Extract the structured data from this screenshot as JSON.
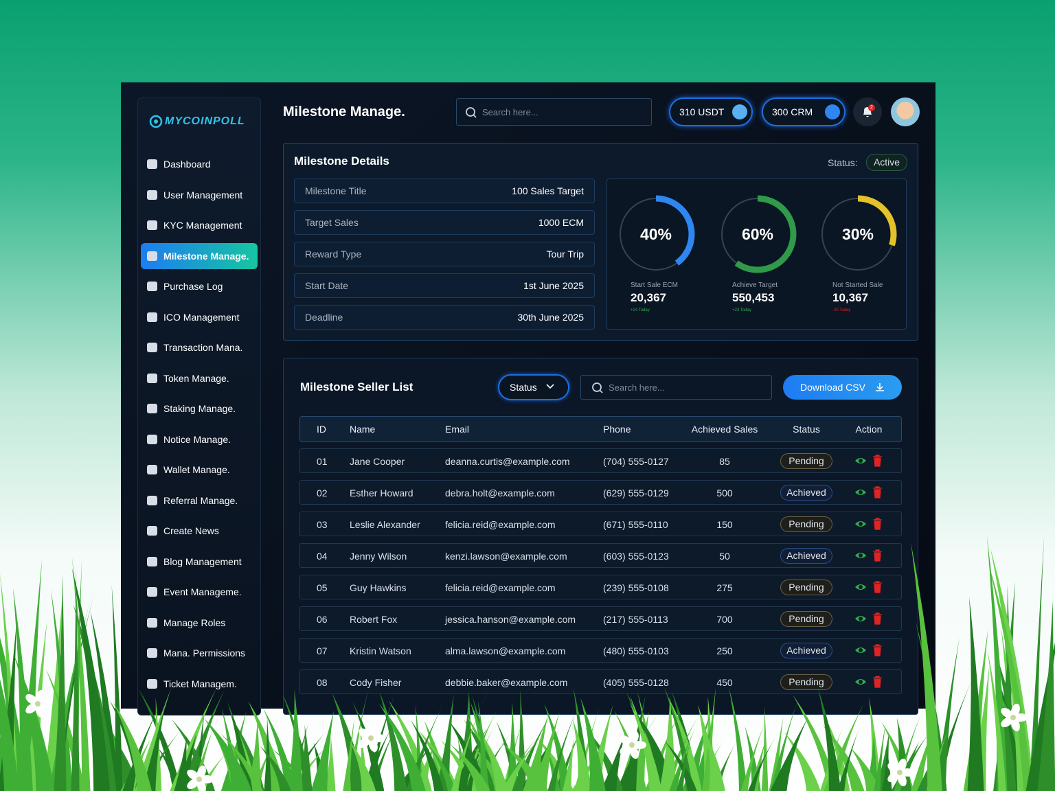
{
  "brand": "MYCOINPOLL",
  "sidebar": {
    "active_index": 3,
    "items": [
      "Dashboard",
      "User Management",
      "KYC Management",
      "Milestone Manage.",
      "Purchase Log",
      "ICO Management",
      "Transaction Mana.",
      "Token Manage.",
      "Staking Manage.",
      "Notice Manage.",
      "Wallet Manage.",
      "Referral Manage.",
      "Create News",
      "Blog Management",
      "Event Manageme.",
      "Manage Roles",
      "Mana. Permissions",
      "Ticket Managem."
    ]
  },
  "header": {
    "title": "Milestone Manage.",
    "search_placeholder": "Search here...",
    "balances": [
      "310 USDT",
      "300 CRM"
    ],
    "notification_count": "2"
  },
  "details": {
    "title": "Milestone Details",
    "status_label": "Status:",
    "status": "Active",
    "fields": [
      {
        "label": "Milestone Title",
        "value": "100 Sales Target"
      },
      {
        "label": "Target Sales",
        "value": "1000 ECM"
      },
      {
        "label": "Reward Type",
        "value": "Tour Trip"
      },
      {
        "label": "Start Date",
        "value": "1st June 2025"
      },
      {
        "label": "Deadline",
        "value": "30th June 2025"
      }
    ],
    "stats": [
      {
        "value": 40,
        "label": "40%",
        "color": "#2f86f0",
        "caption": "Start Sale ECM",
        "amount": "20,367",
        "change": "+24 Today",
        "trend": "up"
      },
      {
        "value": 60,
        "label": "60%",
        "color": "#2f9a48",
        "caption": "Achieve Target",
        "amount": "550,453",
        "change": "+23 Today",
        "trend": "up"
      },
      {
        "value": 30,
        "label": "30%",
        "color": "#e3c22a",
        "caption": "Not Started Sale",
        "amount": "10,367",
        "change": "-20 Today",
        "trend": "down"
      }
    ]
  },
  "seller_list": {
    "title": "Milestone Seller List",
    "status_filter": "Status",
    "search_placeholder": "Search here...",
    "download": "Download CSV",
    "columns": [
      "ID",
      "Name",
      "Email",
      "Phone",
      "Achieved Sales",
      "Status",
      "Action"
    ],
    "rows": [
      [
        "01",
        "Jane Cooper",
        "deanna.curtis@example.com",
        "(704) 555-0127",
        "85",
        "Pending"
      ],
      [
        "02",
        "Esther Howard",
        "debra.holt@example.com",
        "(629) 555-0129",
        "500",
        "Achieved"
      ],
      [
        "03",
        "Leslie Alexander",
        "felicia.reid@example.com",
        "(671) 555-0110",
        "150",
        "Pending"
      ],
      [
        "04",
        "Jenny Wilson",
        "kenzi.lawson@example.com",
        "(603) 555-0123",
        "50",
        "Achieved"
      ],
      [
        "05",
        "Guy Hawkins",
        "felicia.reid@example.com",
        "(239) 555-0108",
        "275",
        "Pending"
      ],
      [
        "06",
        "Robert Fox",
        "jessica.hanson@example.com",
        "(217) 555-0113",
        "700",
        "Pending"
      ],
      [
        "07",
        "Kristin Watson",
        "alma.lawson@example.com",
        "(480) 555-0103",
        "250",
        "Achieved"
      ],
      [
        "08",
        "Cody Fisher",
        "debbie.baker@example.com",
        "(405) 555-0128",
        "450",
        "Pending"
      ]
    ]
  }
}
